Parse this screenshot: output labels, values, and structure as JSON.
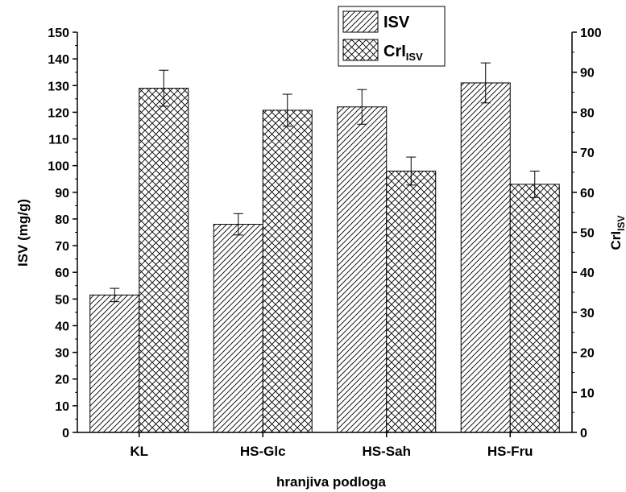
{
  "chart_data": {
    "type": "bar",
    "categories": [
      "KL",
      "HS-Glc",
      "HS-Sah",
      "HS-Fru"
    ],
    "series": [
      {
        "name": "ISV",
        "axis": "left",
        "pattern": "diagonal-hatch",
        "values": [
          51.5,
          78,
          122,
          131
        ],
        "errors": [
          2.5,
          4,
          6.5,
          7.5
        ]
      },
      {
        "name": "CrI",
        "name_subscript": "ISV",
        "axis": "right",
        "pattern": "cross-hatch",
        "values": [
          86,
          80.5,
          65.3,
          62
        ],
        "errors": [
          4.5,
          4,
          3.5,
          3.3
        ]
      }
    ],
    "xlabel": "hranjiva podloga",
    "ylabel": "ISV (mg/g)",
    "y2label": "CrI",
    "y2label_subscript": "ISV",
    "ylim": [
      0,
      150
    ],
    "y2lim": [
      0,
      100
    ],
    "yticks": [
      0,
      10,
      20,
      30,
      40,
      50,
      60,
      70,
      80,
      90,
      100,
      110,
      120,
      130,
      140,
      150
    ],
    "y2ticks": [
      0,
      10,
      20,
      30,
      40,
      50,
      60,
      70,
      80,
      90,
      100
    ],
    "grid": false,
    "legend_position": "top-center",
    "colors": {
      "stroke": "#000000",
      "fill": "#ffffff"
    }
  }
}
